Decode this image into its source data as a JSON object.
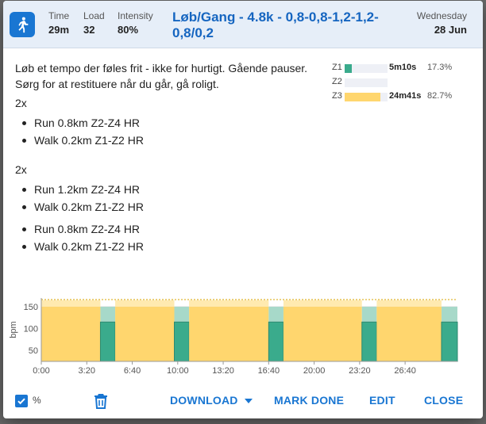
{
  "header": {
    "sport_icon": "running-person-icon",
    "time_label": "Time",
    "time_value": "29m",
    "load_label": "Load",
    "load_value": "32",
    "intensity_label": "Intensity",
    "intensity_value": "80%",
    "title": "Løb/Gang - 4.8k - 0,8-0,8-1,2-1,2-0,8/0,2",
    "day": "Wednesday",
    "date": "28 Jun"
  },
  "description": {
    "line1": "Løb et tempo der føles frit - ikke for hurtigt. Gående pauser.",
    "line2": "Sørg for at restituere når du går, gå roligt."
  },
  "blocks": [
    {
      "repeat": "2x",
      "steps": [
        "Run 0.8km Z2-Z4 HR",
        "Walk 0.2km Z1-Z2 HR"
      ]
    },
    {
      "repeat": "2x",
      "steps": [
        "Run 1.2km Z2-Z4 HR",
        "Walk 0.2km Z1-Z2 HR"
      ]
    },
    {
      "repeat": "",
      "steps": [
        "Run 0.8km Z2-Z4 HR",
        "Walk 0.2km Z1-Z2 HR"
      ]
    }
  ],
  "zones": [
    {
      "label": "Z1",
      "time": "5m10s",
      "pct": "17.3%",
      "fraction": 0.173,
      "color": "#3aab8c"
    },
    {
      "label": "Z2",
      "time": "",
      "pct": "",
      "fraction": 0,
      "color": "#9ad5c4"
    },
    {
      "label": "Z3",
      "time": "24m41s",
      "pct": "82.7%",
      "fraction": 0.827,
      "color": "#ffd66e"
    }
  ],
  "chart_data": {
    "type": "area",
    "ylabel": "bpm",
    "yticks": [
      50,
      100,
      150
    ],
    "ylim": [
      25,
      170
    ],
    "xticks": [
      "0:00",
      "3:20",
      "6:40",
      "10:00",
      "13:20",
      "16:40",
      "20:00",
      "23:20",
      "26:40"
    ],
    "xlim_seconds": [
      0,
      1830
    ],
    "segments": [
      {
        "start": 0,
        "end": 260,
        "zone": "run",
        "low": 25,
        "high": 150,
        "target_top": 165
      },
      {
        "start": 260,
        "end": 325,
        "zone": "walk",
        "low": 25,
        "high": 115,
        "target_top": 150
      },
      {
        "start": 325,
        "end": 585,
        "zone": "run",
        "low": 25,
        "high": 150,
        "target_top": 165
      },
      {
        "start": 585,
        "end": 650,
        "zone": "walk",
        "low": 25,
        "high": 115,
        "target_top": 150
      },
      {
        "start": 650,
        "end": 1000,
        "zone": "run",
        "low": 25,
        "high": 150,
        "target_top": 165
      },
      {
        "start": 1000,
        "end": 1065,
        "zone": "walk",
        "low": 25,
        "high": 115,
        "target_top": 150
      },
      {
        "start": 1065,
        "end": 1410,
        "zone": "run",
        "low": 25,
        "high": 150,
        "target_top": 165
      },
      {
        "start": 1410,
        "end": 1475,
        "zone": "walk",
        "low": 25,
        "high": 115,
        "target_top": 150
      },
      {
        "start": 1475,
        "end": 1760,
        "zone": "run",
        "low": 25,
        "high": 150,
        "target_top": 165
      },
      {
        "start": 1760,
        "end": 1830,
        "zone": "walk",
        "low": 25,
        "high": 115,
        "target_top": 150
      }
    ],
    "colors": {
      "run": "#ffd66e",
      "run_band": "#ffeab0",
      "walk": "#3aab8c",
      "walk_band": "#a7d9c9"
    },
    "grid": true
  },
  "footer": {
    "percent_label": "%",
    "download": "DOWNLOAD",
    "mark_done": "MARK DONE",
    "edit": "EDIT",
    "close": "CLOSE"
  }
}
